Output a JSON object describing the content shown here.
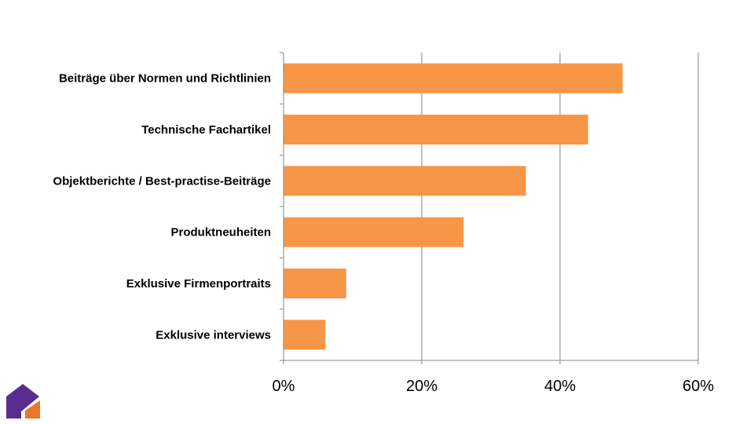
{
  "chart_data": {
    "type": "bar",
    "orientation": "horizontal",
    "categories": [
      "Beiträge über Normen und Richtlinien",
      "Technische Fachartikel",
      "Objektberichte / Best-practise-Beiträge",
      "Produktneuheiten",
      "Exklusive Firmenportraits",
      "Exklusive interviews"
    ],
    "values": [
      49,
      44,
      35,
      26,
      9,
      6
    ],
    "xlim": [
      0,
      60
    ],
    "xticks": [
      0,
      20,
      40,
      60
    ],
    "xtick_labels": [
      "0%",
      "20%",
      "40%",
      "60%"
    ],
    "title": "",
    "xlabel": "",
    "ylabel": "",
    "grid": "vertical",
    "legend": "none",
    "bar_color": "#F79646"
  },
  "logo": {
    "colors": {
      "purple": "#5B2C8F",
      "orange": "#E8762B"
    }
  }
}
